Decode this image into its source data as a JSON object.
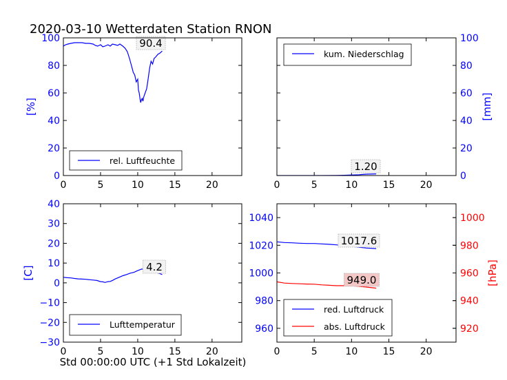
{
  "page": {
    "title": "2020-03-10 Wetterdaten Station RNON",
    "xlabel": "Std 00:00:00 UTC (+1 Std Lokalzeit)"
  },
  "colors": {
    "blue": "#0000ff",
    "red": "#ff0000",
    "black": "#000000"
  },
  "chart_data": [
    {
      "type": "line",
      "name": "humidity",
      "xlim": [
        0,
        24
      ],
      "ylim": [
        0,
        100
      ],
      "xticks": [
        0,
        5,
        10,
        15,
        20
      ],
      "yticks": [
        0,
        20,
        40,
        60,
        80,
        100
      ],
      "ylabel": "[%]",
      "ylabel_color": "#0000ff",
      "legend": "rel. Luftfeuchte",
      "legend_pos": "lower-left",
      "annotation": "90.4",
      "series": [
        {
          "name": "rel. Luftfeuchte",
          "color": "#0000ff",
          "x": [
            0,
            0.3,
            0.6,
            1,
            1.5,
            2,
            2.5,
            3,
            3.5,
            4,
            4.3,
            4.6,
            5,
            5.3,
            5.6,
            6,
            6.3,
            6.6,
            7,
            7.3,
            7.6,
            8,
            8.3,
            8.6,
            8.9,
            9.2,
            9.4,
            9.6,
            9.8,
            10,
            10.1,
            10.2,
            10.3,
            10.4,
            10.5,
            10.6,
            10.7,
            10.8,
            11,
            11.2,
            11.4,
            11.6,
            11.8,
            12,
            12.2,
            12.4,
            12.7,
            13,
            13.3
          ],
          "y": [
            94,
            95,
            95.5,
            96,
            96.5,
            96.5,
            96.5,
            96,
            96,
            95.5,
            94.5,
            94,
            95,
            93.5,
            94,
            95,
            94,
            95.5,
            95,
            94.5,
            95.5,
            94,
            92.5,
            90,
            85,
            79,
            75,
            73,
            68,
            70,
            62,
            60,
            56,
            53,
            55,
            56,
            54,
            57,
            60,
            63,
            70,
            78,
            83,
            81,
            85,
            86,
            88,
            89,
            90.4
          ]
        }
      ]
    },
    {
      "type": "line",
      "name": "precipitation",
      "xlim": [
        0,
        24
      ],
      "ylim": [
        0,
        100
      ],
      "xticks": [
        0,
        5,
        10,
        15,
        20
      ],
      "yticks": [
        0,
        20,
        40,
        60,
        80,
        100
      ],
      "ylabel": "[mm]",
      "ylabel_color": "#0000ff",
      "legend": "kum. Niederschlag",
      "legend_pos": "upper-left",
      "annotation": "1.20",
      "series": [
        {
          "name": "kum. Niederschlag",
          "color": "#0000ff",
          "x": [
            0,
            2,
            4,
            6,
            8,
            9,
            10,
            11,
            11.5,
            12,
            13.3
          ],
          "y": [
            0,
            0,
            0,
            0,
            0.1,
            0.2,
            0.4,
            0.6,
            0.8,
            1.0,
            1.2
          ]
        }
      ]
    },
    {
      "type": "line",
      "name": "temperature",
      "xlim": [
        0,
        24
      ],
      "ylim": [
        -30,
        40
      ],
      "xticks": [
        0,
        5,
        10,
        15,
        20
      ],
      "yticks": [
        -30,
        -20,
        -10,
        0,
        10,
        20,
        30,
        40
      ],
      "ylabel": "[C]",
      "ylabel_color": "#0000ff",
      "legend": "Lufttemperatur",
      "legend_pos": "lower-left",
      "annotation": "4.2",
      "series": [
        {
          "name": "Lufttemperatur",
          "color": "#0000ff",
          "x": [
            0,
            0.5,
            1,
            1.5,
            2,
            2.5,
            3,
            3.5,
            4,
            4.5,
            5,
            5.3,
            5.6,
            6,
            6.3,
            6.6,
            7,
            7.5,
            8,
            8.5,
            9,
            9.5,
            10,
            10.5,
            11,
            11.5,
            12,
            12.5,
            13,
            13.3
          ],
          "y": [
            2.8,
            2.6,
            2.5,
            2.2,
            2.0,
            1.9,
            1.8,
            1.6,
            1.4,
            1.2,
            0.6,
            0.5,
            0.2,
            0.6,
            0.7,
            1.2,
            2.0,
            2.8,
            3.6,
            4.2,
            4.9,
            5.3,
            6.2,
            6.9,
            7.1,
            6.8,
            5.9,
            5.2,
            4.6,
            4.2
          ]
        }
      ]
    },
    {
      "type": "line",
      "name": "pressure",
      "xlim": [
        0,
        24
      ],
      "ylim": [
        950,
        1050
      ],
      "xticks": [
        0,
        5,
        10,
        15,
        20
      ],
      "yticks": [
        960,
        980,
        1000,
        1020,
        1040
      ],
      "y2lim": [
        910,
        1010
      ],
      "y2ticks": [
        920,
        940,
        960,
        980,
        1000
      ],
      "y2label": "[hPa]",
      "y2label_color": "#ff0000",
      "legend_pos": "lower-left",
      "annotations": [
        "1017.6",
        "949.0"
      ],
      "series": [
        {
          "name": "red. Luftdruck",
          "color": "#0000ff",
          "axis": "left",
          "x": [
            0,
            1,
            2,
            3,
            4,
            5,
            6,
            7,
            8,
            9,
            10,
            11,
            12,
            13.3
          ],
          "y": [
            1022.5,
            1022.0,
            1021.8,
            1021.5,
            1021.3,
            1021.3,
            1021.0,
            1020.7,
            1020.3,
            1019.8,
            1019.2,
            1018.6,
            1018.0,
            1017.6
          ]
        },
        {
          "name": "abs. Luftdruck",
          "color": "#ff0000",
          "axis": "right",
          "x": [
            0,
            1,
            2,
            3,
            4,
            5,
            6,
            7,
            8,
            9,
            10,
            11,
            12,
            13.3
          ],
          "y": [
            953.6,
            952.7,
            952.4,
            952.2,
            952.0,
            951.9,
            951.4,
            951.1,
            950.8,
            950.8,
            950.7,
            950.3,
            949.8,
            949.0
          ]
        }
      ]
    }
  ]
}
